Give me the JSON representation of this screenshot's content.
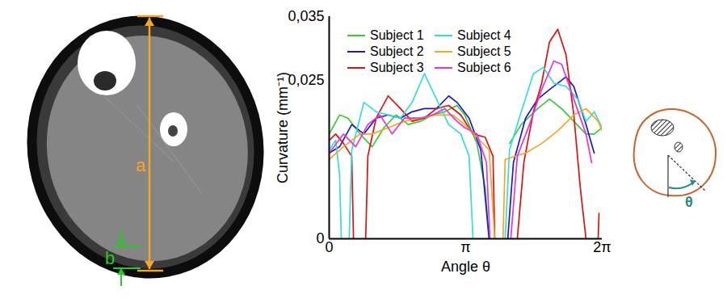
{
  "chart_data": {
    "type": "line",
    "x_label": "Angle θ",
    "y_label": "Curvature (mm⁻¹)",
    "xlim": [
      0,
      6.2832
    ],
    "xticks": [
      0,
      {
        "value": 3.1416,
        "label": "π"
      },
      {
        "value": 6.2832,
        "label": "2π"
      }
    ],
    "ylim": [
      0,
      0.035
    ],
    "yticks": [
      0,
      {
        "value": 0.025,
        "label": "0,025"
      },
      {
        "value": 0.035,
        "label": "0,035"
      }
    ],
    "legend": "top",
    "series": [
      {
        "name": "Subject 1",
        "color": "#33cc33",
        "x": [
          0,
          0.24,
          0.43,
          0.71,
          0.99,
          1.26,
          1.54,
          1.82,
          2.1,
          2.38,
          2.66,
          2.94,
          3.12,
          3.4,
          3.59,
          3.68,
          3.9,
          4.15,
          4.42,
          4.8,
          5.07,
          5.35,
          5.63,
          5.91,
          6.1,
          6.28
        ],
        "values": [
          0.0165,
          0.0195,
          0.019,
          0.0165,
          0.0145,
          0.0175,
          0.0195,
          0.018,
          0.0185,
          0.0195,
          0.02,
          0.021,
          0.0195,
          0.015,
          0.008,
          0,
          null,
          0.015,
          0.018,
          0.0205,
          0.022,
          0.0205,
          0.0185,
          0.0165,
          0.0165,
          0.0175
        ]
      },
      {
        "name": "Subject 2",
        "color": "#1a1acc",
        "x": [
          0,
          0.24,
          0.52,
          0.8,
          1.08,
          1.36,
          1.64,
          1.91,
          2.19,
          2.47,
          2.75,
          2.94,
          3.22,
          3.49,
          3.68,
          3.9,
          4.11,
          4.24,
          4.52,
          4.8,
          5.07,
          5.45,
          5.63,
          5.91,
          6.1
        ],
        "values": [
          0.0135,
          0.0145,
          0.018,
          0.0165,
          0.019,
          0.0195,
          0.019,
          0.02,
          0.0205,
          0.0205,
          0.0225,
          0.0215,
          0.019,
          0.014,
          0,
          null,
          0,
          0.012,
          0.019,
          0.022,
          0.0235,
          0.0255,
          0.024,
          0.018,
          0.0135
        ]
      },
      {
        "name": "Subject 3",
        "color": "#e01010",
        "x": [
          0,
          0.15,
          0.33,
          0.52,
          0.56,
          0.7,
          0.84,
          0.89,
          1.08,
          1.36,
          1.64,
          1.91,
          2.19,
          2.47,
          2.75,
          3.03,
          3.31,
          3.59,
          3.77,
          3.81,
          3.9,
          4.33,
          4.48,
          4.7,
          4.89,
          5.07,
          5.26,
          5.45,
          5.63,
          5.78,
          5.91,
          6.1,
          6.19,
          6.21
        ],
        "values": [
          0.0155,
          0.0165,
          0.015,
          0.013,
          0,
          null,
          0,
          0.013,
          0.019,
          0.0225,
          0.0205,
          0.0185,
          0.019,
          0.0205,
          0.021,
          0.0195,
          0.0165,
          0.016,
          0.013,
          0,
          null,
          0,
          0.012,
          0.02,
          0.0245,
          0.031,
          0.033,
          0.029,
          0.0195,
          0.008,
          0,
          null,
          0,
          0.004
        ]
      },
      {
        "name": "Subject 4",
        "color": "#33dddd",
        "x": [
          0,
          0.15,
          0.24,
          0.28,
          0.37,
          0.46,
          0.52,
          0.8,
          1.08,
          1.36,
          1.64,
          1.91,
          2.19,
          2.47,
          2.75,
          3.03,
          3.22,
          3.31,
          3.9,
          4.05,
          4.15,
          4.42,
          4.7,
          4.93,
          5.17,
          5.45,
          5.72,
          5.91,
          6.1,
          6.28
        ],
        "values": [
          0.014,
          0.0155,
          0.01,
          0,
          null,
          0,
          0.014,
          0.0215,
          0.02,
          0.0195,
          0.019,
          0.0215,
          0.026,
          0.022,
          0.018,
          0.0165,
          0.013,
          0,
          null,
          0,
          0.014,
          0.02,
          0.026,
          0.027,
          0.0245,
          0.024,
          0.022,
          0.0185,
          0.02,
          0.0175
        ]
      },
      {
        "name": "Subject 5",
        "color": "#f5a623",
        "x": [
          0,
          0.33,
          0.71,
          0.99,
          1.36,
          1.73,
          2.1,
          2.47,
          2.84,
          3.12,
          3.4,
          3.68,
          3.81,
          3.9,
          4.0,
          4.05,
          4.52,
          4.89,
          5.26,
          5.63,
          5.91,
          6.19,
          6.28
        ],
        "values": [
          0.0125,
          0.0145,
          0.0165,
          0.0165,
          0.0175,
          0.0185,
          0.019,
          0.0195,
          0.0195,
          0.018,
          0.016,
          0.014,
          0,
          null,
          0,
          0.0125,
          0.0135,
          0.015,
          0.017,
          0.0195,
          0.0205,
          0.0185,
          0.017
        ]
      },
      {
        "name": "Subject 6",
        "color": "#e633e6",
        "x": [
          0,
          0.33,
          0.61,
          0.89,
          1.17,
          1.45,
          1.73,
          2.1,
          2.38,
          2.66,
          2.94,
          3.12,
          3.4,
          3.62,
          3.7,
          3.9,
          4.18,
          4.33,
          4.61,
          4.89,
          5.17,
          5.35,
          5.63,
          5.91,
          6.04
        ],
        "values": [
          0.0135,
          0.0165,
          0.0145,
          0.018,
          0.0195,
          0.0165,
          0.019,
          0.019,
          0.0195,
          0.0205,
          0.0185,
          0.0175,
          0.0165,
          0.012,
          0,
          null,
          0,
          0.013,
          0.018,
          0.0235,
          0.028,
          0.0275,
          0.022,
          0.0165,
          0.012
        ]
      }
    ]
  },
  "image": {
    "annotations": [
      {
        "label": "a",
        "color": "#f5a623"
      },
      {
        "label": "b",
        "color": "#22cc22"
      }
    ]
  },
  "diagram": {
    "label": "θ",
    "color": "#2a8a8a"
  }
}
